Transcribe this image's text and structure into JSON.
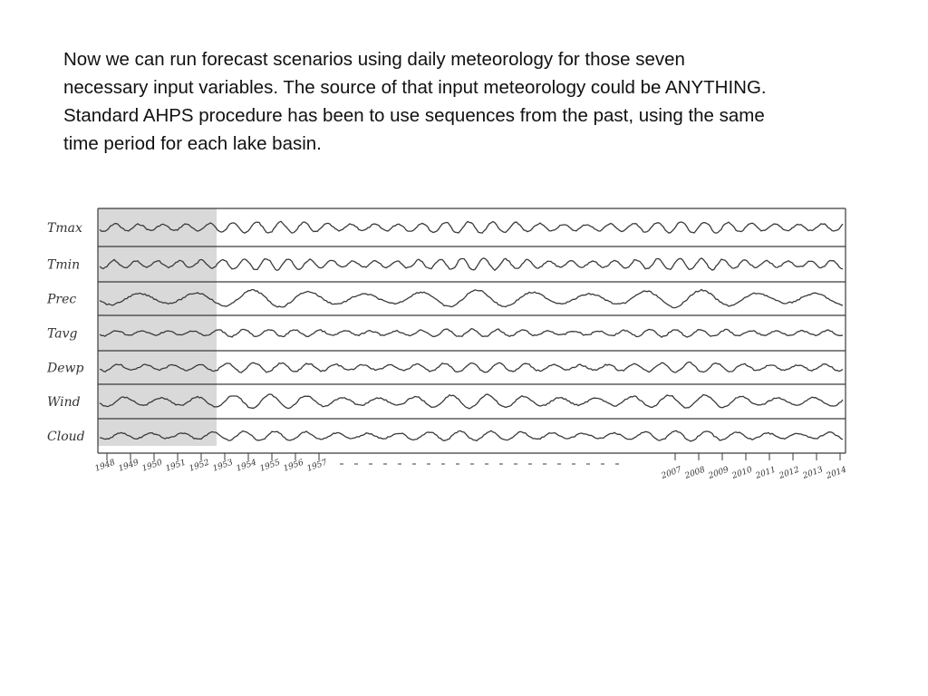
{
  "slide": {
    "lines": [
      "Now we can run forecast scenarios using daily meteorology for those seven",
      "necessary input variables. The source of that input meteorology could be ANYTHING.",
      "Standard AHPS procedure has been to use sequences from the past, using the same",
      "time period for each lake basin."
    ]
  },
  "diagram": {
    "variables": [
      "Tmax",
      "Tmin",
      "Prec",
      "Tavg",
      "Dewp",
      "Wind",
      "Cloud"
    ],
    "years_early": [
      "1948",
      "1949",
      "1950",
      "1951",
      "1952",
      "1953",
      "1954",
      "1955",
      "1956",
      "1957"
    ],
    "years_late": [
      "2007",
      "2008",
      "2009",
      "2010",
      "2011",
      "2012",
      "2013",
      "2014"
    ],
    "highlight_color": "#d9d9d9",
    "line_color": "#3a3a3a"
  }
}
